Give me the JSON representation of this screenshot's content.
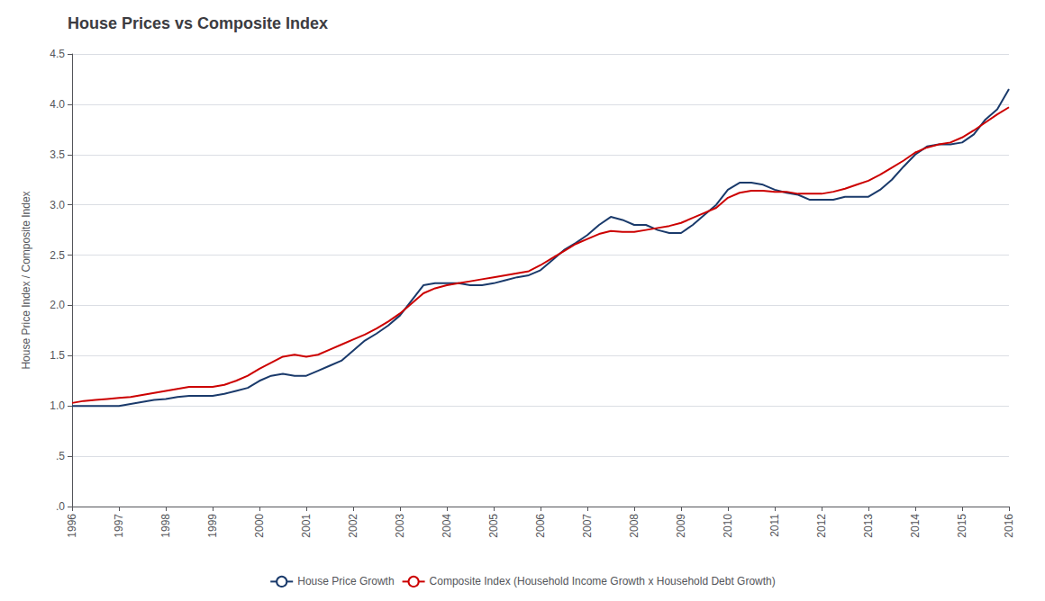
{
  "chart_data": {
    "type": "line",
    "title": "House Prices vs Composite Index",
    "ylabel": "House Price Index / Composite Index",
    "x": [
      1996.0,
      1996.25,
      1996.5,
      1996.75,
      1997.0,
      1997.25,
      1997.5,
      1997.75,
      1998.0,
      1998.25,
      1998.5,
      1998.75,
      1999.0,
      1999.25,
      1999.5,
      1999.75,
      2000.0,
      2000.25,
      2000.5,
      2000.75,
      2001.0,
      2001.25,
      2001.5,
      2001.75,
      2002.0,
      2002.25,
      2002.5,
      2002.75,
      2003.0,
      2003.25,
      2003.5,
      2003.75,
      2004.0,
      2004.25,
      2004.5,
      2004.75,
      2005.0,
      2005.25,
      2005.5,
      2005.75,
      2006.0,
      2006.25,
      2006.5,
      2006.75,
      2007.0,
      2007.25,
      2007.5,
      2007.75,
      2008.0,
      2008.25,
      2008.5,
      2008.75,
      2009.0,
      2009.25,
      2009.5,
      2009.75,
      2010.0,
      2010.25,
      2010.5,
      2010.75,
      2011.0,
      2011.25,
      2011.5,
      2011.75,
      2012.0,
      2012.25,
      2012.5,
      2012.75,
      2013.0,
      2013.25,
      2013.5,
      2013.75,
      2014.0,
      2014.25,
      2014.5,
      2014.75,
      2015.0,
      2015.25,
      2015.5,
      2015.75,
      2016.0
    ],
    "series": [
      {
        "name": "House Price Growth",
        "color": "#1a3a6b",
        "values": [
          1.0,
          1.0,
          1.0,
          1.0,
          1.0,
          1.02,
          1.04,
          1.06,
          1.07,
          1.09,
          1.1,
          1.1,
          1.1,
          1.12,
          1.15,
          1.18,
          1.25,
          1.3,
          1.32,
          1.3,
          1.3,
          1.35,
          1.4,
          1.45,
          1.55,
          1.65,
          1.72,
          1.8,
          1.9,
          2.05,
          2.2,
          2.22,
          2.22,
          2.22,
          2.2,
          2.2,
          2.22,
          2.25,
          2.28,
          2.3,
          2.35,
          2.45,
          2.55,
          2.62,
          2.7,
          2.8,
          2.88,
          2.85,
          2.8,
          2.8,
          2.75,
          2.72,
          2.72,
          2.8,
          2.9,
          3.0,
          3.15,
          3.22,
          3.22,
          3.2,
          3.15,
          3.12,
          3.1,
          3.05,
          3.05,
          3.05,
          3.08,
          3.08,
          3.08,
          3.15,
          3.25,
          3.38,
          3.5,
          3.58,
          3.6,
          3.6,
          3.62,
          3.7,
          3.85,
          3.95,
          4.15
        ]
      },
      {
        "name": "Composite Index (Household Income Growth x Household Debt Growth)",
        "color": "#cc0000",
        "values": [
          1.03,
          1.05,
          1.06,
          1.07,
          1.08,
          1.09,
          1.11,
          1.13,
          1.15,
          1.17,
          1.19,
          1.19,
          1.19,
          1.21,
          1.25,
          1.3,
          1.37,
          1.43,
          1.49,
          1.51,
          1.49,
          1.51,
          1.56,
          1.61,
          1.66,
          1.71,
          1.77,
          1.84,
          1.92,
          2.02,
          2.12,
          2.17,
          2.2,
          2.22,
          2.24,
          2.26,
          2.28,
          2.3,
          2.32,
          2.34,
          2.4,
          2.47,
          2.54,
          2.61,
          2.66,
          2.71,
          2.74,
          2.73,
          2.73,
          2.75,
          2.77,
          2.79,
          2.82,
          2.87,
          2.92,
          2.97,
          3.07,
          3.12,
          3.14,
          3.14,
          3.13,
          3.13,
          3.11,
          3.11,
          3.11,
          3.13,
          3.16,
          3.2,
          3.24,
          3.3,
          3.37,
          3.44,
          3.52,
          3.57,
          3.6,
          3.62,
          3.67,
          3.74,
          3.82,
          3.9,
          3.97
        ]
      }
    ],
    "xlim": [
      1996,
      2016
    ],
    "xticks": [
      1996,
      1997,
      1998,
      1999,
      2000,
      2001,
      2002,
      2003,
      2004,
      2005,
      2006,
      2007,
      2008,
      2009,
      2010,
      2011,
      2012,
      2013,
      2014,
      2015,
      2016
    ],
    "ylim": [
      0.0,
      4.5
    ],
    "yticks": [
      {
        "value": 0.0,
        "label": ".0"
      },
      {
        "value": 0.5,
        "label": ".5"
      },
      {
        "value": 1.0,
        "label": "1.0"
      },
      {
        "value": 1.5,
        "label": "1.5"
      },
      {
        "value": 2.0,
        "label": "2.0"
      },
      {
        "value": 2.5,
        "label": "2.5"
      },
      {
        "value": 3.0,
        "label": "3.0"
      },
      {
        "value": 3.5,
        "label": "3.5"
      },
      {
        "value": 4.0,
        "label": "4.0"
      },
      {
        "value": 4.5,
        "label": "4.5"
      }
    ],
    "grid": true,
    "legend": "bottom"
  }
}
